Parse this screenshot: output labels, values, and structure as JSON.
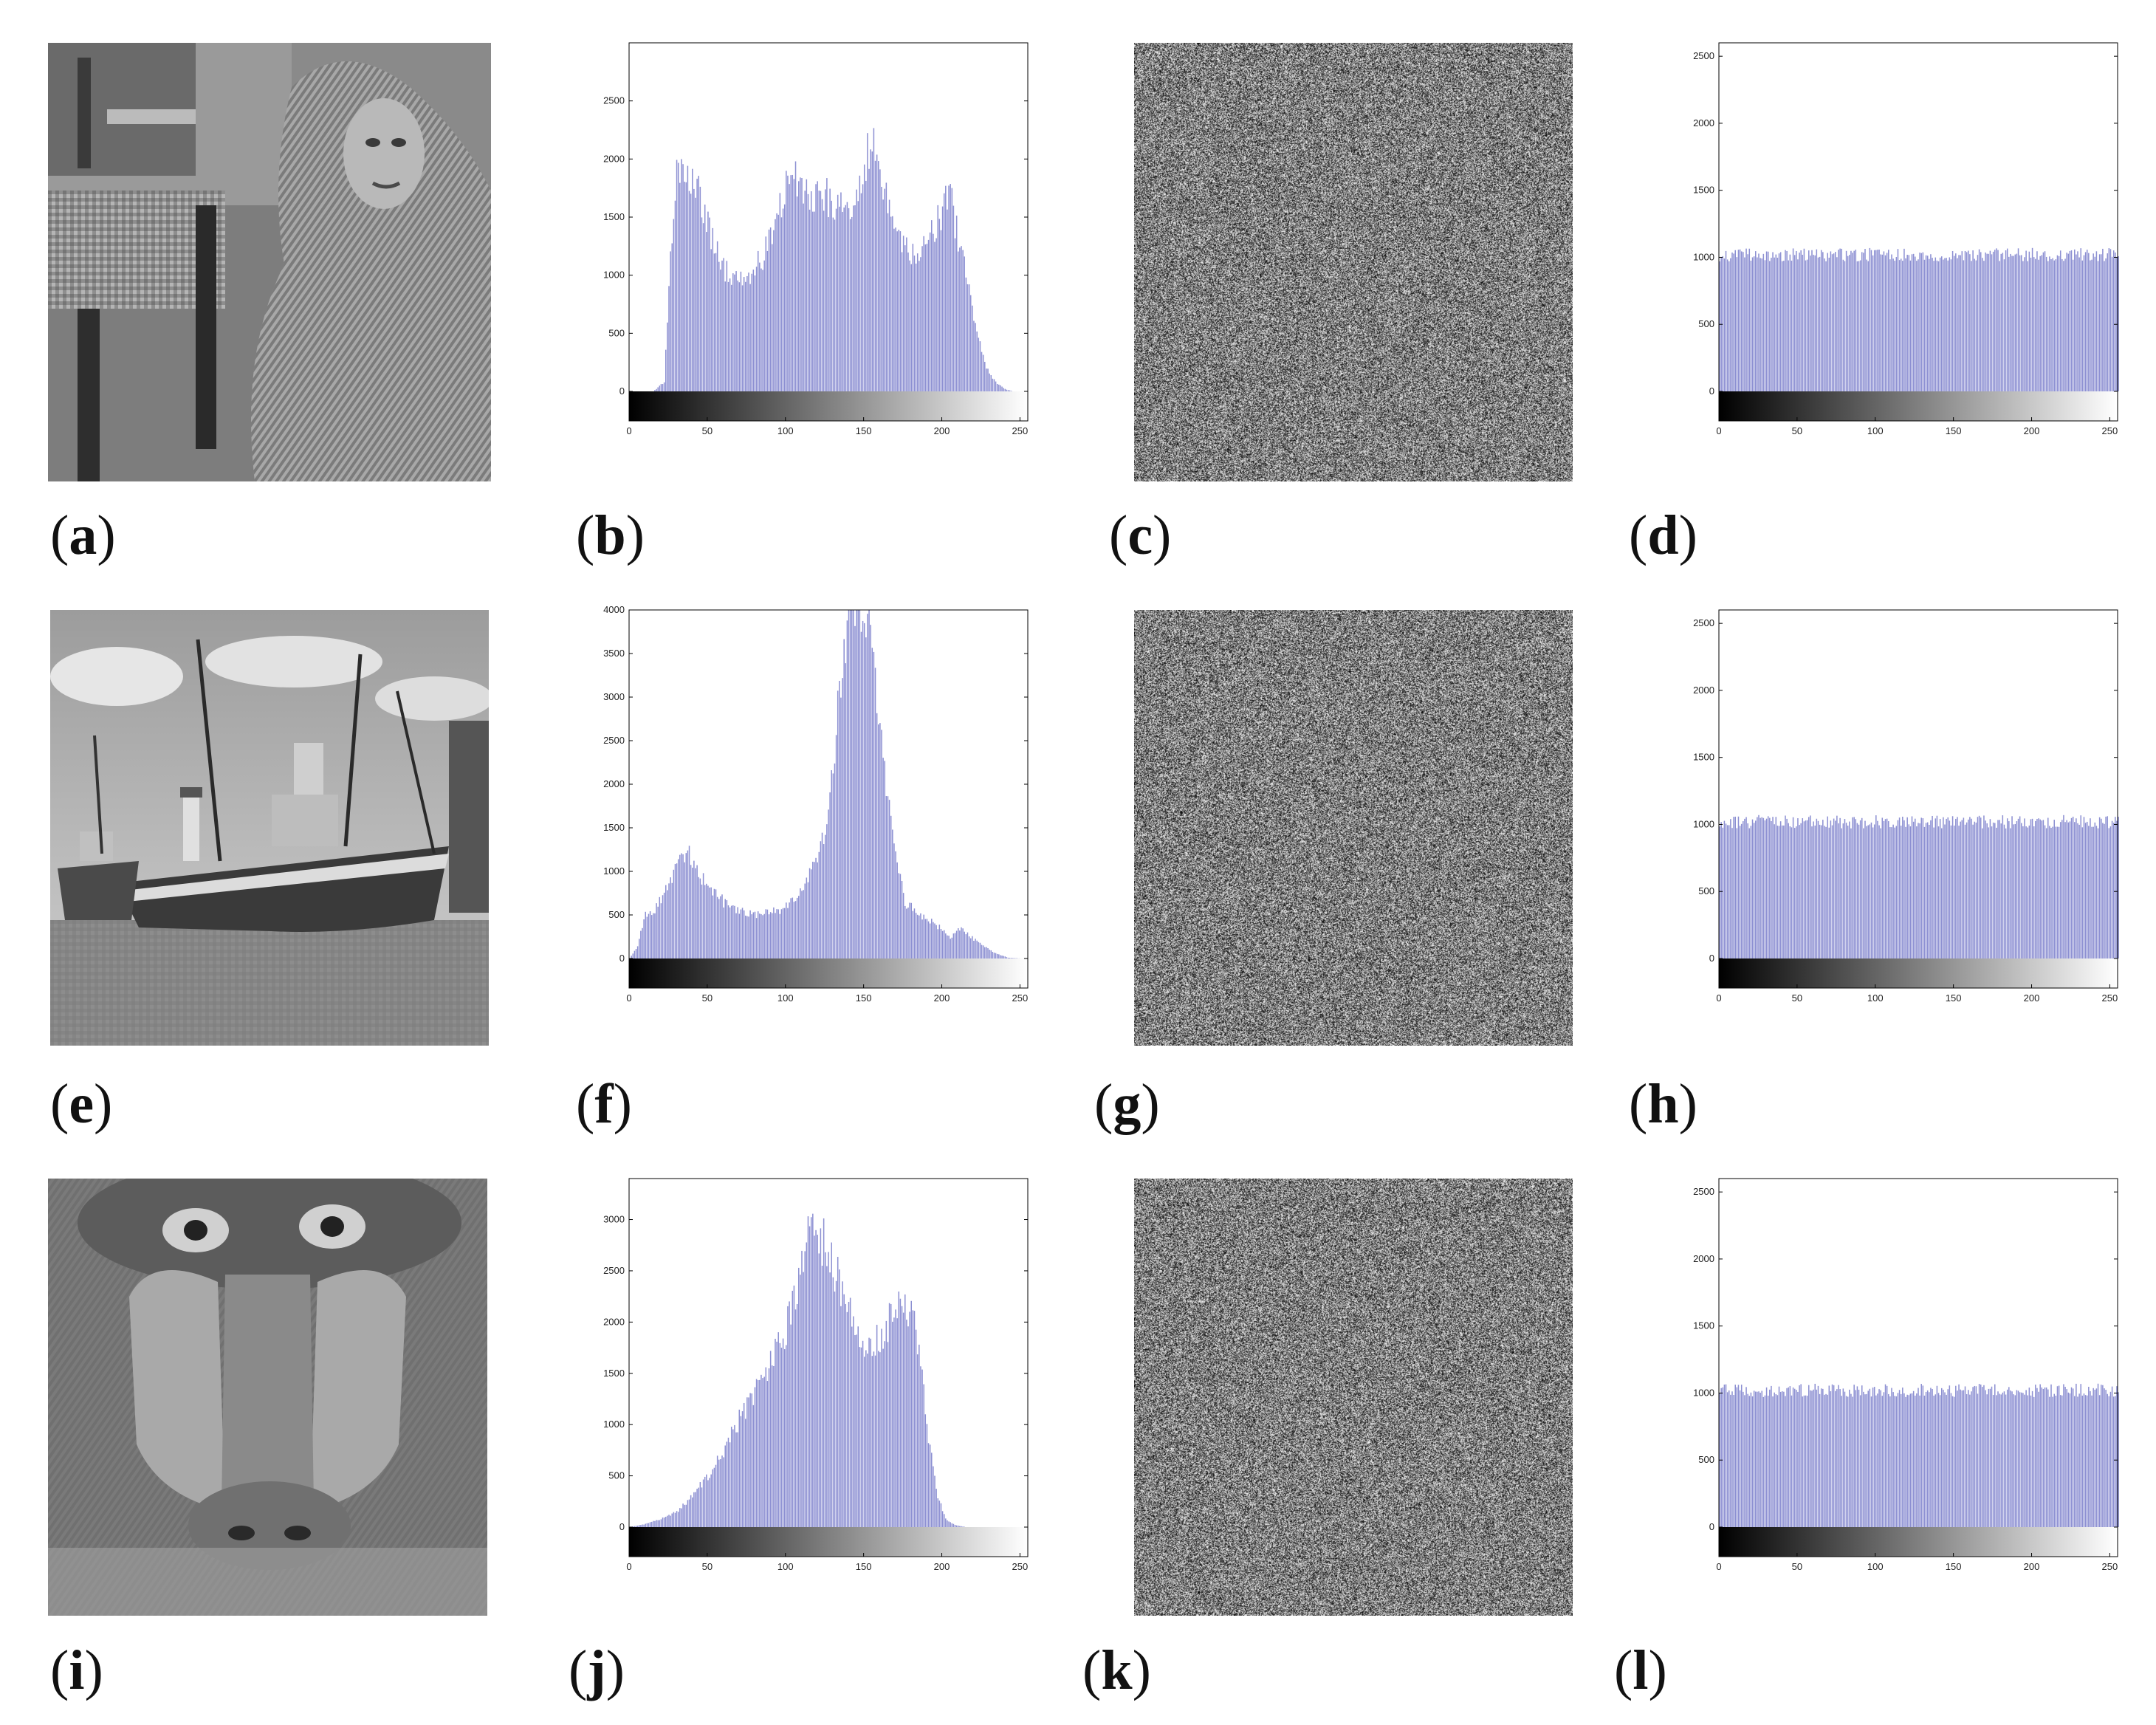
{
  "figure": {
    "labels": [
      "a",
      "b",
      "c",
      "d",
      "e",
      "f",
      "g",
      "h",
      "i",
      "j",
      "k",
      "l"
    ],
    "photos": [
      {
        "panel": "a",
        "subject": "woman-in-headscarf"
      },
      {
        "panel": "e",
        "subject": "boats-on-beach"
      },
      {
        "panel": "i",
        "subject": "baboon-face"
      }
    ],
    "cipher_panels": [
      "c",
      "g",
      "k"
    ]
  },
  "colors": {
    "bar": "#8c8fd2",
    "axis": "#000000",
    "gradient_start": "#000000",
    "gradient_end": "#ffffff"
  },
  "chart_data": [
    {
      "panel": "b",
      "type": "bar",
      "title": "",
      "xlabel": "",
      "ylabel": "",
      "xlim": [
        0,
        255
      ],
      "ylim": [
        0,
        3000
      ],
      "xticks": [
        0,
        50,
        100,
        150,
        200,
        250
      ],
      "yticks": [
        0,
        500,
        1000,
        1500,
        2000,
        2500
      ],
      "profile": [
        [
          0,
          0
        ],
        [
          15,
          0
        ],
        [
          22,
          80
        ],
        [
          26,
          1100
        ],
        [
          30,
          1900
        ],
        [
          33,
          1950
        ],
        [
          38,
          1800
        ],
        [
          45,
          1700
        ],
        [
          52,
          1350
        ],
        [
          60,
          1050
        ],
        [
          68,
          950
        ],
        [
          76,
          1000
        ],
        [
          85,
          1150
        ],
        [
          92,
          1400
        ],
        [
          98,
          1700
        ],
        [
          103,
          1950
        ],
        [
          108,
          1800
        ],
        [
          115,
          1650
        ],
        [
          122,
          1720
        ],
        [
          128,
          1650
        ],
        [
          134,
          1550
        ],
        [
          140,
          1600
        ],
        [
          146,
          1750
        ],
        [
          152,
          2050
        ],
        [
          157,
          2200
        ],
        [
          162,
          1800
        ],
        [
          168,
          1400
        ],
        [
          175,
          1250
        ],
        [
          182,
          1150
        ],
        [
          190,
          1250
        ],
        [
          205,
          1700
        ],
        [
          210,
          1300
        ],
        [
          216,
          1000
        ],
        [
          222,
          500
        ],
        [
          228,
          200
        ],
        [
          234,
          80
        ],
        [
          240,
          20
        ],
        [
          245,
          0
        ],
        [
          255,
          0
        ]
      ]
    },
    {
      "panel": "d",
      "type": "bar",
      "title": "",
      "xlabel": "",
      "ylabel": "",
      "xlim": [
        0,
        255
      ],
      "ylim": [
        0,
        2600
      ],
      "xticks": [
        0,
        50,
        100,
        150,
        200,
        250
      ],
      "yticks": [
        0,
        500,
        1000,
        1500,
        2000,
        2500
      ],
      "profile": [
        [
          0,
          1020
        ],
        [
          255,
          1020
        ]
      ],
      "noise": 50
    },
    {
      "panel": "f",
      "type": "bar",
      "title": "",
      "xlabel": "",
      "ylabel": "",
      "xlim": [
        0,
        255
      ],
      "ylim": [
        0,
        4000
      ],
      "xticks": [
        0,
        50,
        100,
        150,
        200,
        250
      ],
      "yticks": [
        0,
        500,
        1000,
        1500,
        2000,
        2500,
        3000,
        3500,
        4000
      ],
      "profile": [
        [
          0,
          0
        ],
        [
          5,
          150
        ],
        [
          10,
          500
        ],
        [
          18,
          600
        ],
        [
          25,
          900
        ],
        [
          32,
          1100
        ],
        [
          38,
          1200
        ],
        [
          45,
          950
        ],
        [
          52,
          800
        ],
        [
          60,
          650
        ],
        [
          70,
          550
        ],
        [
          80,
          500
        ],
        [
          90,
          550
        ],
        [
          98,
          550
        ],
        [
          105,
          700
        ],
        [
          112,
          850
        ],
        [
          118,
          1050
        ],
        [
          124,
          1450
        ],
        [
          128,
          1900
        ],
        [
          132,
          2600
        ],
        [
          136,
          3500
        ],
        [
          140,
          4000
        ],
        [
          145,
          4000
        ],
        [
          150,
          4000
        ],
        [
          155,
          3800
        ],
        [
          160,
          2600
        ],
        [
          165,
          1800
        ],
        [
          170,
          1200
        ],
        [
          176,
          650
        ],
        [
          185,
          500
        ],
        [
          195,
          400
        ],
        [
          205,
          250
        ],
        [
          212,
          350
        ],
        [
          218,
          250
        ],
        [
          226,
          150
        ],
        [
          235,
          50
        ],
        [
          242,
          10
        ],
        [
          250,
          0
        ],
        [
          255,
          0
        ]
      ]
    },
    {
      "panel": "h",
      "type": "bar",
      "title": "",
      "xlabel": "",
      "ylabel": "",
      "xlim": [
        0,
        255
      ],
      "ylim": [
        0,
        2600
      ],
      "xticks": [
        0,
        50,
        100,
        150,
        200,
        250
      ],
      "yticks": [
        0,
        500,
        1000,
        1500,
        2000,
        2500
      ],
      "profile": [
        [
          0,
          1020
        ],
        [
          255,
          1020
        ]
      ],
      "noise": 50
    },
    {
      "panel": "j",
      "type": "bar",
      "title": "",
      "xlabel": "",
      "ylabel": "",
      "xlim": [
        0,
        255
      ],
      "ylim": [
        0,
        3400
      ],
      "xticks": [
        0,
        50,
        100,
        150,
        200,
        250
      ],
      "yticks": [
        0,
        500,
        1000,
        1500,
        2000,
        2500,
        3000
      ],
      "profile": [
        [
          0,
          0
        ],
        [
          10,
          30
        ],
        [
          20,
          80
        ],
        [
          30,
          150
        ],
        [
          40,
          300
        ],
        [
          50,
          500
        ],
        [
          60,
          750
        ],
        [
          70,
          1050
        ],
        [
          80,
          1350
        ],
        [
          90,
          1600
        ],
        [
          100,
          1950
        ],
        [
          106,
          2200
        ],
        [
          112,
          2650
        ],
        [
          116,
          2900
        ],
        [
          120,
          2850
        ],
        [
          126,
          2700
        ],
        [
          132,
          2450
        ],
        [
          140,
          2100
        ],
        [
          145,
          1900
        ],
        [
          150,
          1800
        ],
        [
          158,
          1850
        ],
        [
          166,
          2000
        ],
        [
          172,
          2150
        ],
        [
          177,
          2200
        ],
        [
          181,
          2050
        ],
        [
          186,
          1650
        ],
        [
          190,
          1000
        ],
        [
          196,
          350
        ],
        [
          202,
          80
        ],
        [
          208,
          20
        ],
        [
          215,
          0
        ],
        [
          255,
          0
        ]
      ]
    },
    {
      "panel": "l",
      "type": "bar",
      "title": "",
      "xlabel": "",
      "ylabel": "",
      "xlim": [
        0,
        255
      ],
      "ylim": [
        0,
        2600
      ],
      "xticks": [
        0,
        50,
        100,
        150,
        200,
        250
      ],
      "yticks": [
        0,
        500,
        1000,
        1500,
        2000,
        2500
      ],
      "profile": [
        [
          0,
          1020
        ],
        [
          255,
          1020
        ]
      ],
      "noise": 50
    }
  ]
}
